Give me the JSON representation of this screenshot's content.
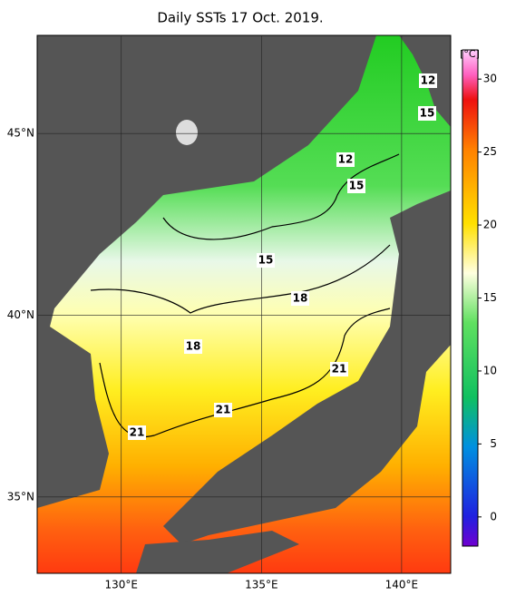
{
  "map": {
    "title": "Daily SSTs 17 Oct. 2019.",
    "lon_range": [
      127,
      141.75
    ],
    "lat_range": [
      32.9,
      47.7
    ],
    "lon_ticks": [
      {
        "value": 130,
        "label": "130°E"
      },
      {
        "value": 135,
        "label": "135°E"
      },
      {
        "value": 140,
        "label": "140°E"
      }
    ],
    "lat_ticks": [
      {
        "value": 35,
        "label": "35°N"
      },
      {
        "value": 40,
        "label": "40°N"
      },
      {
        "value": 45,
        "label": "45°N"
      }
    ],
    "contour_labels": [
      12,
      15,
      12,
      15,
      15,
      18,
      18,
      21,
      21,
      21
    ],
    "colorbar": {
      "unit": "[°C]",
      "range": [
        -2,
        32
      ],
      "ticks": [
        0,
        5,
        10,
        15,
        20,
        25,
        30
      ]
    }
  }
}
